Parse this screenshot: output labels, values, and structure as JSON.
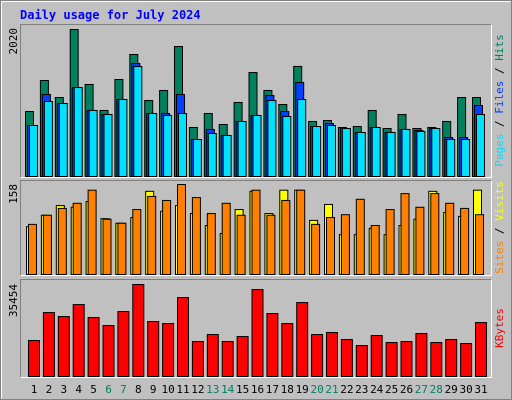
{
  "chart_data": [
    {
      "type": "bar",
      "title": "Daily usage for July 2024",
      "title_color": "#0000ff",
      "legend_separator": " / ",
      "ylim": [
        0,
        2020
      ],
      "yticks": [
        2020
      ],
      "grid": false,
      "series": [
        {
          "name": "Pages",
          "color": "#00e0ff",
          "values": [
            696,
            1024,
            996,
            1214,
            901,
            846,
            1051,
            1501,
            860,
            833,
            860,
            505,
            587,
            560,
            751,
            833,
            1037,
            819,
            1051,
            682,
            696,
            655,
            601,
            669,
            601,
            642,
            614,
            655,
            505,
            505,
            846
          ]
        },
        {
          "name": "Files",
          "color": "#0040ff",
          "values": [
            696,
            1119,
            996,
            1214,
            901,
            846,
            1051,
            1542,
            860,
            860,
            1119,
            505,
            642,
            560,
            751,
            833,
            1105,
            887,
            1283,
            682,
            723,
            655,
            601,
            669,
            601,
            642,
            628,
            655,
            532,
            532,
            969
          ]
        },
        {
          "name": "Hits",
          "color": "#00805c",
          "values": [
            887,
            1310,
            1078,
            2006,
            1256,
            901,
            1324,
            1665,
            1037,
            1174,
            1774,
            669,
            860,
            710,
            1010,
            1419,
            1174,
            983,
            1502,
            751,
            764,
            669,
            682,
            901,
            655,
            846,
            655,
            669,
            751,
            1078,
            1078
          ]
        }
      ]
    },
    {
      "type": "bar",
      "ylim": [
        0,
        158
      ],
      "yticks": [
        158
      ],
      "series": [
        {
          "name": "Sites",
          "color": "#ff8000",
          "values": [
            88,
            104,
            116,
            125,
            148,
            97,
            90,
            114,
            137,
            130,
            158,
            135,
            107,
            125,
            104,
            148,
            104,
            130,
            148,
            88,
            100,
            105,
            132,
            86,
            114,
            142,
            118,
            142,
            125,
            116,
            105
          ]
        },
        {
          "name": "Visits",
          "color": "#ffff00",
          "values": [
            84,
            104,
            121,
            118,
            128,
            98,
            90,
            100,
            146,
            111,
            121,
            107,
            86,
            72,
            114,
            146,
            107,
            148,
            148,
            95,
            123,
            70,
            70,
            81,
            70,
            86,
            97,
            146,
            109,
            102,
            148
          ]
        }
      ]
    },
    {
      "type": "bar",
      "ylim": [
        0,
        35454
      ],
      "yticks": [
        35454
      ],
      "categories": [
        "1",
        "2",
        "3",
        "4",
        "5",
        "6",
        "7",
        "8",
        "9",
        "10",
        "11",
        "12",
        "13",
        "14",
        "15",
        "16",
        "17",
        "18",
        "19",
        "20",
        "21",
        "22",
        "23",
        "24",
        "25",
        "26",
        "27",
        "28",
        "29",
        "30",
        "31"
      ],
      "category_colors": [
        "#000000",
        "#000000",
        "#000000",
        "#000000",
        "#000000",
        "#00805c",
        "#00805c",
        "#000000",
        "#000000",
        "#000000",
        "#000000",
        "#000000",
        "#00805c",
        "#00805c",
        "#000000",
        "#000000",
        "#000000",
        "#000000",
        "#000000",
        "#00805c",
        "#00805c",
        "#000000",
        "#000000",
        "#000000",
        "#000000",
        "#000000",
        "#00805c",
        "#00805c",
        "#000000",
        "#000000",
        "#000000"
      ],
      "series": [
        {
          "name": "KBytes",
          "color": "#ff0000",
          "values": [
            13860,
            24640,
            23100,
            27720,
            22715,
            19635,
            25025,
            35454,
            21175,
            20405,
            30415,
            13475,
            16170,
            13475,
            15400,
            33495,
            24255,
            20405,
            28490,
            16170,
            16940,
            14245,
            11935,
            15785,
            13090,
            13475,
            16555,
            13090,
            14245,
            12705,
            20790
          ]
        }
      ]
    }
  ]
}
